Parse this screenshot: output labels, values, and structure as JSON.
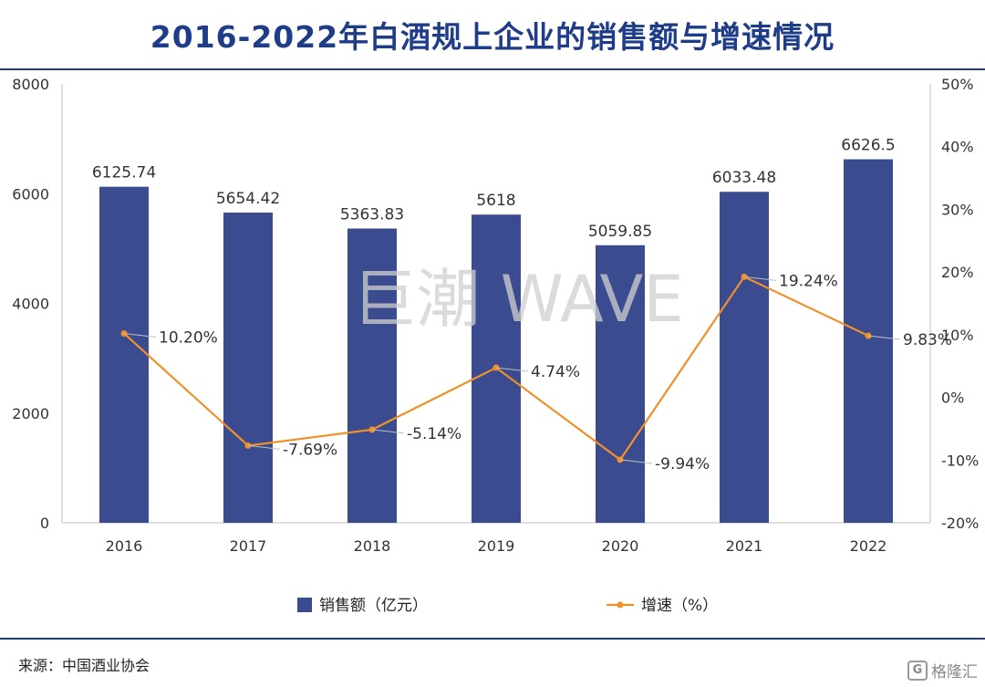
{
  "title": "2016-2022年白酒规上企业的销售额与增速情况",
  "source": "来源：中国酒业协会",
  "watermark": "巨潮 WAVE",
  "logo": {
    "mark": "G",
    "text": "格隆汇"
  },
  "colors": {
    "bar": "#3b4b8f",
    "line": "#f0902a",
    "title": "#1f3c88"
  },
  "chart_data": {
    "type": "bar+line",
    "categories": [
      "2016",
      "2017",
      "2018",
      "2019",
      "2020",
      "2021",
      "2022"
    ],
    "series": [
      {
        "name": "销售额（亿元）",
        "type": "bar",
        "axis": "left",
        "values": [
          6125.74,
          5654.42,
          5363.83,
          5618,
          5059.85,
          6033.48,
          6626.5
        ],
        "labels": [
          "6125.74",
          "5654.42",
          "5363.83",
          "5618",
          "5059.85",
          "6033.48",
          "6626.5"
        ]
      },
      {
        "name": "增速（%）",
        "type": "line",
        "axis": "right",
        "values": [
          10.2,
          -7.69,
          -5.14,
          4.74,
          -9.94,
          19.24,
          9.83
        ],
        "labels": [
          "10.20%",
          "-7.69%",
          "-5.14%",
          "4.74%",
          "-9.94%",
          "19.24%",
          "9.83%"
        ]
      }
    ],
    "y_left": {
      "min": 0,
      "max": 8000,
      "ticks": [
        "0",
        "2000",
        "4000",
        "6000",
        "8000"
      ]
    },
    "y_right": {
      "min": -20,
      "max": 50,
      "ticks": [
        "-20%",
        "-10%",
        "0%",
        "10%",
        "20%",
        "30%",
        "40%",
        "50%"
      ]
    },
    "legend_position": "bottom",
    "grid": false
  }
}
